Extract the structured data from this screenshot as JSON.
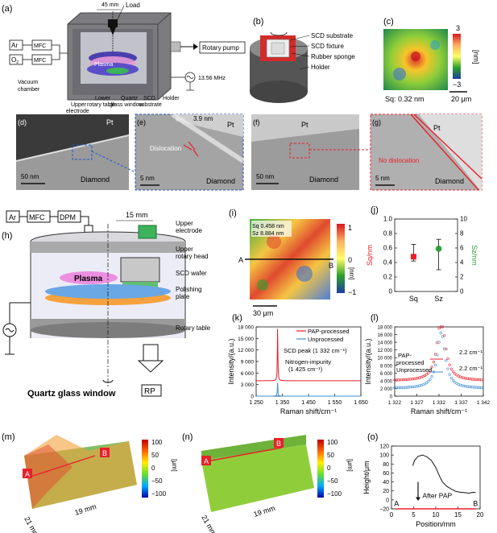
{
  "panels": {
    "a": {
      "letter": "(a)",
      "labels": {
        "load": "Load",
        "dist": "45 mm",
        "ar": "Ar",
        "o2": "O",
        "o2_sub": "2",
        "mfc": "MFC",
        "rotary_pump": "Rotary pump",
        "plasma": "Plasma",
        "freq": "13.56 MHz",
        "vacuum1": "Vacuum",
        "vacuum2": "chamber",
        "upper1": "Upper",
        "upper2": "electrode",
        "lower1": "Lower",
        "lower2": "rotary table",
        "quartz1": "Quartz",
        "quartz2": "glass window",
        "scd1": "SCD",
        "scd2": "substrate",
        "holder": "Holder"
      }
    },
    "b": {
      "letter": "(b)",
      "labels": [
        "SCD substrate",
        "SCD fixture",
        "Rubber sponge",
        "Holder"
      ]
    },
    "c": {
      "letter": "(c)",
      "colorbar_max": "3",
      "colorbar_min": "−3",
      "unit": "[nm]",
      "sq": "Sq: 0.32 nm",
      "scale": "20 μm"
    },
    "tem": {
      "d": {
        "letter": "(d)",
        "pt": "Pt",
        "diamond": "Diamond",
        "scale": "50 nm"
      },
      "e": {
        "letter": "(e)",
        "pt": "Pt",
        "thickness": "3.9 nm",
        "dislocation": "Dislocation",
        "diamond": "Diamond",
        "scale": "5 nm"
      },
      "f": {
        "letter": "(f)",
        "pt": "Pt",
        "diamond": "Diamond",
        "scale": "50 nm"
      },
      "g": {
        "letter": "(g)",
        "pt": "Pt",
        "nodis": "No dislocation",
        "diamond": "Diamond",
        "scale": "5 nm"
      }
    },
    "h": {
      "letter": "(h)",
      "ar": "Ar",
      "mfc": "MFC",
      "dpm": "DPM",
      "dist": "15 mm",
      "plasma": "Plasma",
      "upper_electrode": [
        "Upper",
        "electrode"
      ],
      "upper_rotary": [
        "Upper",
        "rotary head"
      ],
      "scd_wafer": "SCD wafer",
      "polishing": [
        "Polishing",
        "plate"
      ],
      "rotary_table": "Rotary table",
      "quartz": "Quartz glass window",
      "rp": "RP"
    },
    "i": {
      "letter": "(i)",
      "sq": "Sq 0.458 nm",
      "sz": "Sz 8.884 nm",
      "a": "A",
      "b": "B",
      "cb_max": "1",
      "cb_zero": "0",
      "cb_min": "−1",
      "unit": "[nm]",
      "scale": "30 μm"
    },
    "m": {
      "letter": "(m)",
      "a": "A",
      "b": "B",
      "dim1": "21 mm",
      "dim2": "19 mm",
      "cb_ticks": [
        "100",
        "50",
        "0",
        "−50",
        "−100"
      ],
      "unit": "[μm]"
    },
    "n": {
      "letter": "(n)",
      "a": "A",
      "b": "B",
      "dim1": "21 mm",
      "dim2": "19 mm",
      "cb_ticks": [
        "100",
        "50",
        "0",
        "−50",
        "−100"
      ],
      "unit": "[μm]"
    }
  },
  "chart_data": [
    {
      "id": "j",
      "letter": "(j)",
      "type": "scatter",
      "categories": [
        "Sq",
        "Sz"
      ],
      "ylabel_left": "Sq/nm",
      "ylabel_right": "Sz/nm",
      "ylim_left": [
        0,
        1.0
      ],
      "ylim_right": [
        0,
        10
      ],
      "yticks_left": [
        "0",
        "0.2",
        "0.4",
        "0.6",
        "0.8",
        "1.0"
      ],
      "yticks_right": [
        "0",
        "2",
        "4",
        "6",
        "8",
        "10"
      ],
      "series": [
        {
          "color": "#e8202a",
          "marker": "square",
          "value": 0.48,
          "err_low": 0.42,
          "err_high": 0.65,
          "axis": "left"
        },
        {
          "color": "#2e9e3e",
          "marker": "circle",
          "value": 5.9,
          "err_low": 3.0,
          "err_high": 7.2,
          "axis": "right"
        }
      ]
    },
    {
      "id": "k",
      "letter": "(k)",
      "type": "line",
      "xlabel": "Raman shift/cm⁻¹",
      "ylabel": "Intensity/(a.u.)",
      "xlim": [
        1250,
        1650
      ],
      "ylim": [
        0,
        18000
      ],
      "xticks": [
        "1 250",
        "1 350",
        "1 450",
        "1 550",
        "1 650"
      ],
      "yticks": [
        "0",
        "3 000",
        "6 000",
        "9 000",
        "12 000",
        "15 000",
        "18 000"
      ],
      "series": [
        {
          "name": "PAP-processed",
          "color": "#e8202a"
        },
        {
          "name": "Unprocessed",
          "color": "#3d8fd1"
        }
      ],
      "annotations": [
        "SCD peak (1 332 cm⁻¹)",
        "Nitrogen-impurity",
        "(1 425 cm⁻¹)"
      ]
    },
    {
      "id": "l",
      "letter": "(l)",
      "type": "scatter",
      "xlabel": "Raman shift/cm⁻¹",
      "ylabel": "Intensity/(a.u.)",
      "xlim": [
        1322,
        1342
      ],
      "ylim": [
        0,
        18000
      ],
      "xticks": [
        "1 322",
        "1 327",
        "1 332",
        "1 337",
        "1 342"
      ],
      "yticks": [
        "0",
        "2 000",
        "4 000",
        "6 000",
        "8 000",
        "10 000",
        "12 000",
        "14 000",
        "16 000",
        "18 000"
      ],
      "series": [
        {
          "name": "PAP-processed",
          "color": "#e8202a",
          "fwhm": "2.2 cm⁻¹"
        },
        {
          "name": "Unprocessed",
          "color": "#3d8fd1",
          "fwhm": "2.2 cm⁻¹"
        }
      ],
      "annotations": [
        "PAP-",
        "processed",
        "Unprocessed",
        "2.2 cm⁻¹",
        "2.2 cm⁻¹"
      ]
    },
    {
      "id": "o",
      "letter": "(o)",
      "type": "line",
      "xlabel": "Position/mm",
      "ylabel": "Height/μm",
      "xlim": [
        0,
        20
      ],
      "ylim": [
        -20,
        120
      ],
      "xticks": [
        "0",
        "5",
        "10",
        "15",
        "20"
      ],
      "yticks": [
        "−20",
        "0",
        "20",
        "40",
        "60",
        "80",
        "100",
        "120"
      ],
      "series": [
        {
          "name": "before",
          "color": "#111111",
          "x": [
            4.8,
            5.2,
            6,
            7,
            8,
            9,
            10,
            10.8,
            11.5,
            12.5,
            13.5,
            14.5,
            15.5,
            16.5,
            17.5,
            18.5,
            19
          ],
          "y": [
            76,
            88,
            97,
            100,
            96,
            88,
            72,
            54,
            40,
            30,
            24,
            19,
            17,
            16,
            15,
            17,
            16
          ]
        },
        {
          "name": "After PAP",
          "color": "#e8202a",
          "x": [
            1,
            19
          ],
          "y": [
            -20,
            -20
          ]
        }
      ],
      "annotations": [
        "After PAP",
        "A",
        "B"
      ]
    }
  ]
}
